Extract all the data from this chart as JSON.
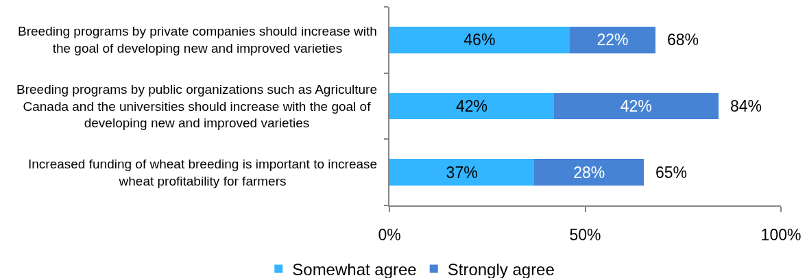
{
  "chart_data": {
    "type": "bar",
    "orientation": "horizontal",
    "stacked": true,
    "categories": [
      "Breeding programs by private companies should increase with the goal of developing new and improved varieties",
      "Breeding programs by public organizations such as Agriculture Canada and the universities should increase with the goal of developing new and improved varieties",
      "Increased funding of wheat breeding is important to increase wheat profitability for farmers"
    ],
    "series": [
      {
        "name": "Somewhat agree",
        "color": "#33b5ff",
        "values": [
          46,
          42,
          37
        ],
        "value_labels": [
          "46%",
          "42%",
          "37%"
        ]
      },
      {
        "name": "Strongly agree",
        "color": "#4683d4",
        "values": [
          22,
          42,
          28
        ],
        "value_labels": [
          "22%",
          "42%",
          "28%"
        ]
      }
    ],
    "totals": [
      "68%",
      "84%",
      "65%"
    ],
    "xlim": [
      0,
      100
    ],
    "xticks": [
      {
        "value": 0,
        "label": "0%"
      },
      {
        "value": 50,
        "label": "50%"
      },
      {
        "value": 100,
        "label": "100%"
      }
    ],
    "legend": "bottom"
  }
}
